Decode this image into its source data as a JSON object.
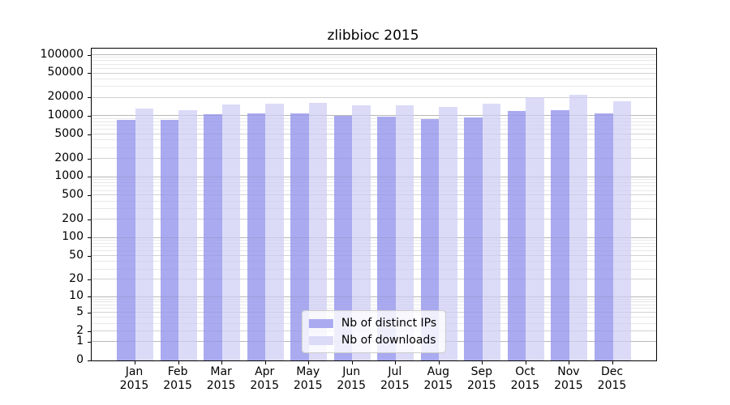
{
  "chart_data": {
    "type": "bar",
    "title": "zlibbioc 2015",
    "xlabel": "",
    "ylabel": "",
    "scale": "log10(value+1)",
    "ylim": [
      0,
      127000
    ],
    "grid": "horizontal",
    "legend_position": "lower center",
    "background_color": "#ffffff",
    "categories": [
      "Jan 2015",
      "Feb 2015",
      "Mar 2015",
      "Apr 2015",
      "May 2015",
      "Jun 2015",
      "Jul 2015",
      "Aug 2015",
      "Sep 2015",
      "Oct 2015",
      "Nov 2015",
      "Dec 2015"
    ],
    "series": [
      {
        "name": "Nb of distinct IPs",
        "color": "#aaaaf1",
        "values": [
          8600,
          8700,
          10700,
          11000,
          11100,
          10100,
          9800,
          8900,
          9500,
          12200,
          12700,
          11100
        ]
      },
      {
        "name": "Nb of downloads",
        "color": "#dbdbf8",
        "values": [
          13300,
          12600,
          15500,
          16100,
          16300,
          15300,
          15300,
          14300,
          15800,
          20400,
          22500,
          17800
        ]
      }
    ],
    "yticks": [
      0,
      1,
      2,
      5,
      10,
      20,
      50,
      100,
      200,
      500,
      1000,
      2000,
      5000,
      10000,
      20000,
      50000,
      100000
    ]
  }
}
